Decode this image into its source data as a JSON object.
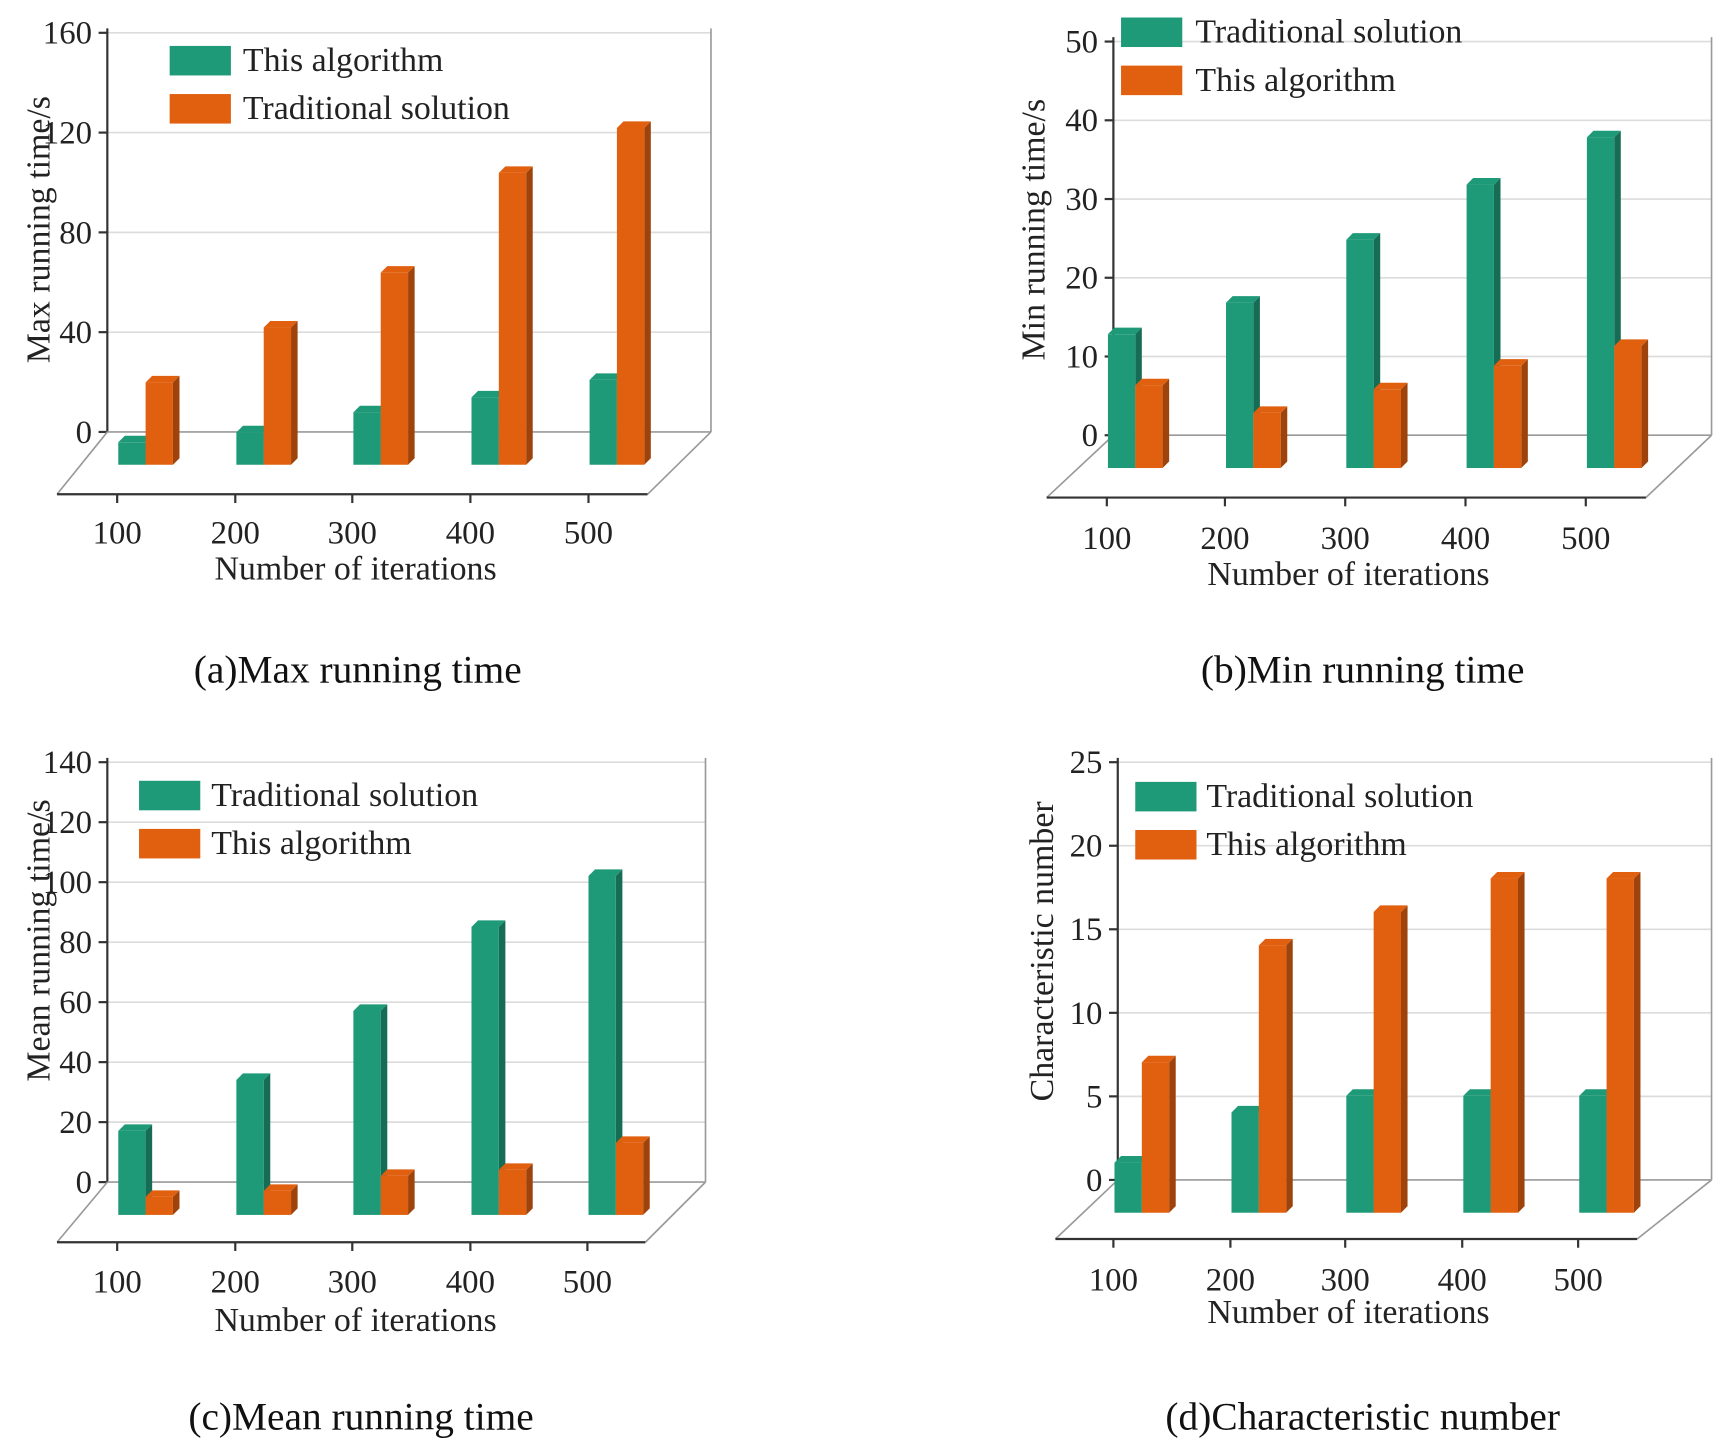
{
  "chart_data": [
    {
      "type": "bar",
      "style": "3d-grouped",
      "caption": "(a)Max running time",
      "xlabel": "Number of iterations",
      "ylabel": "Max running time/s",
      "categories": [
        "100",
        "200",
        "300",
        "400",
        "500"
      ],
      "yticks": [
        "0",
        "40",
        "80",
        "120",
        "160"
      ],
      "ylim": [
        0,
        160
      ],
      "grid": true,
      "legend": "top-left",
      "series": [
        {
          "name": "This algorithm",
          "color": "#1f9a78",
          "values": [
            9,
            13,
            21,
            27,
            34
          ]
        },
        {
          "name": "Traditional solution",
          "color": "#e0600f",
          "values": [
            33,
            55,
            77,
            117,
            135
          ]
        }
      ]
    },
    {
      "type": "bar",
      "style": "3d-grouped",
      "caption": "(b)Min running time",
      "xlabel": "Number of iterations",
      "ylabel": "Min running time/s",
      "categories": [
        "100",
        "200",
        "300",
        "400",
        "500"
      ],
      "yticks": [
        "0",
        "10",
        "20",
        "30",
        "40",
        "50"
      ],
      "ylim": [
        0,
        50
      ],
      "grid": true,
      "legend": "top-left",
      "series": [
        {
          "name": "Traditional solution",
          "color": "#1f9a78",
          "values": [
            17,
            21,
            29,
            36,
            42
          ]
        },
        {
          "name": "This algorithm",
          "color": "#e0600f",
          "values": [
            10.5,
            7,
            10,
            13,
            15.5
          ]
        }
      ]
    },
    {
      "type": "bar",
      "style": "3d-grouped",
      "caption": "(c)Mean running time",
      "xlabel": "Number of iterations",
      "ylabel": "Mean running time/s",
      "categories": [
        "100",
        "200",
        "300",
        "400",
        "500"
      ],
      "yticks": [
        "0",
        "20",
        "40",
        "60",
        "80",
        "100",
        "120",
        "140"
      ],
      "ylim": [
        0,
        140
      ],
      "grid": true,
      "legend": "top-left",
      "series": [
        {
          "name": "Traditional solution",
          "color": "#1f9a78",
          "values": [
            28,
            45,
            68,
            96,
            113
          ]
        },
        {
          "name": "This algorithm",
          "color": "#e0600f",
          "values": [
            6,
            8,
            13,
            15,
            24
          ]
        }
      ]
    },
    {
      "type": "bar",
      "style": "3d-grouped",
      "caption": "(d)Characteristic number",
      "xlabel": "Number of iterations",
      "ylabel": "Characteristic number",
      "categories": [
        "100",
        "200",
        "300",
        "400",
        "500"
      ],
      "yticks": [
        "0",
        "5",
        "10",
        "15",
        "20",
        "25"
      ],
      "ylim": [
        0,
        25
      ],
      "grid": true,
      "legend": "top-left",
      "series": [
        {
          "name": "Traditional solution",
          "color": "#1f9a78",
          "values": [
            3,
            6,
            7,
            7,
            7
          ]
        },
        {
          "name": "This algorithm",
          "color": "#e0600f",
          "values": [
            9,
            16,
            18,
            20,
            20
          ]
        }
      ]
    }
  ]
}
